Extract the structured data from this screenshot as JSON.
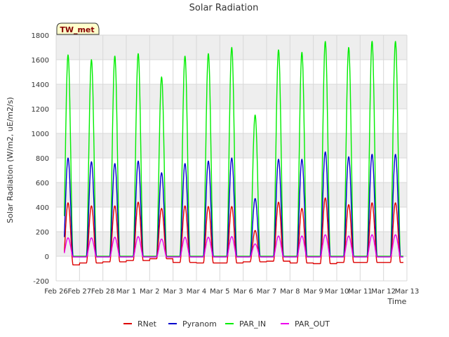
{
  "chart_data": {
    "type": "line",
    "title": "Solar Radiation",
    "xlabel": "Time",
    "ylabel": "Solar Radiation (W/m2, uE/m2/s)",
    "ylim": [
      -200,
      1800
    ],
    "yticks": [
      -200,
      0,
      200,
      400,
      600,
      800,
      1000,
      1200,
      1400,
      1600,
      1800
    ],
    "xlim": [
      0,
      15
    ],
    "xtick_labels": [
      "Feb 26",
      "Feb 27",
      "Feb 28",
      "Mar 1",
      "Mar 2",
      "Mar 3",
      "Mar 4",
      "Mar 5",
      "Mar 6",
      "Mar 7",
      "Mar 8",
      "Mar 9",
      "Mar 10",
      "Mar 11",
      "Mar 12",
      "Mar 13"
    ],
    "grid": true,
    "legend_position": "bottom",
    "station_label": "TW_met",
    "day_peaks": [
      "Feb 26",
      "Feb 27",
      "Feb 28",
      "Mar 1",
      "Mar 2",
      "Mar 3",
      "Mar 4",
      "Mar 5",
      "Mar 6",
      "Mar 7",
      "Mar 8",
      "Mar 9",
      "Mar 10",
      "Mar 11"
    ],
    "series": [
      {
        "name": "RNet",
        "color": "#dd0000",
        "peaks": [
          435,
          410,
          410,
          440,
          390,
          410,
          405,
          405,
          210,
          440,
          390,
          475,
          420,
          435
        ],
        "night": [
          -70,
          -55,
          -45,
          -35,
          -20,
          -50,
          -55,
          -55,
          -45,
          -40,
          -55,
          -60,
          -50,
          -50
        ]
      },
      {
        "name": "Pyranom",
        "color": "#0000cc",
        "peaks": [
          800,
          770,
          755,
          775,
          680,
          755,
          775,
          800,
          470,
          790,
          790,
          850,
          810,
          830
        ],
        "night": [
          -5,
          -5,
          -5,
          -5,
          -5,
          -5,
          -5,
          -5,
          -5,
          -5,
          -5,
          -5,
          -5,
          -5
        ]
      },
      {
        "name": "PAR_IN",
        "color": "#00ee00",
        "peaks": [
          1640,
          1600,
          1630,
          1650,
          1460,
          1630,
          1650,
          1700,
          1150,
          1680,
          1660,
          1750,
          1700,
          1750
        ],
        "night": [
          0,
          0,
          0,
          0,
          0,
          0,
          0,
          0,
          0,
          0,
          0,
          0,
          0,
          0
        ]
      },
      {
        "name": "PAR_OUT",
        "color": "#ee00ee",
        "peaks": [
          150,
          150,
          155,
          160,
          140,
          155,
          155,
          160,
          100,
          165,
          165,
          175,
          165,
          175
        ],
        "night": [
          -5,
          -5,
          -5,
          -5,
          -5,
          -5,
          -5,
          -5,
          -5,
          -5,
          -5,
          -5,
          -5,
          -5
        ]
      }
    ]
  }
}
